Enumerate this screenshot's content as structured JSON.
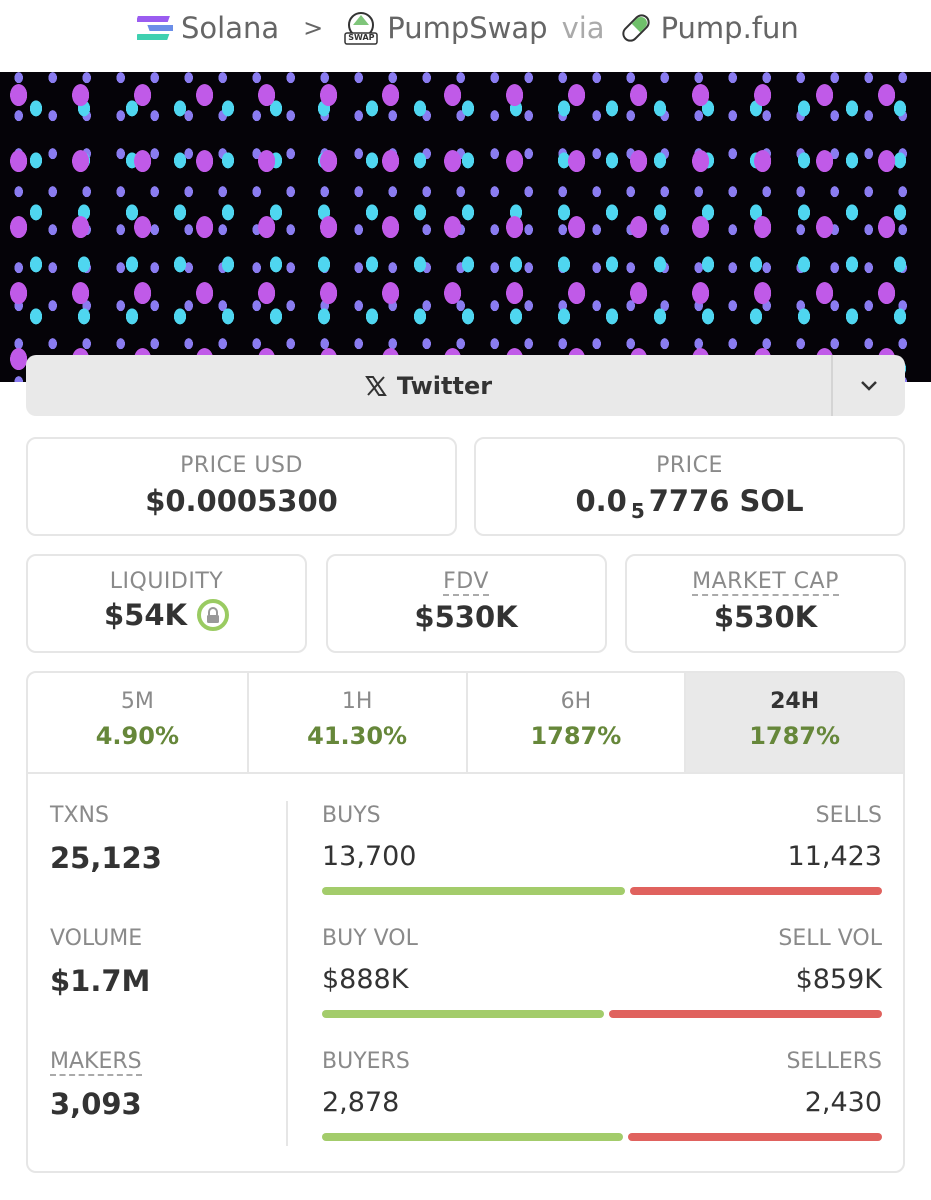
{
  "breadcrumb": {
    "chain": "Solana",
    "separator": ">",
    "dex": "PumpSwap",
    "dex_badge": "SWAP",
    "via": "via",
    "launchpad": "Pump.fun"
  },
  "social": {
    "label": "Twitter"
  },
  "price_usd": {
    "label": "PRICE USD",
    "value": "$0.0005300"
  },
  "price": {
    "label": "PRICE",
    "value_prefix": "0.0",
    "value_subscript": "5",
    "value_suffix": "7776 SOL"
  },
  "stats": [
    {
      "label": "LIQUIDITY",
      "value": "$54K"
    },
    {
      "label": "FDV",
      "value": "$530K"
    },
    {
      "label": "MARKET CAP",
      "value": "$530K"
    }
  ],
  "tabs": [
    {
      "label": "5M",
      "change": "4.90%",
      "selected": false
    },
    {
      "label": "1H",
      "change": "41.30%",
      "selected": false
    },
    {
      "label": "6H",
      "change": "1787%",
      "selected": false
    },
    {
      "label": "24H",
      "change": "1787%",
      "selected": true
    }
  ],
  "summary": [
    {
      "label": "TXNS",
      "value": "25,123"
    },
    {
      "label": "VOLUME",
      "value": "$1.7M"
    },
    {
      "label": "MAKERS",
      "value": "3,093"
    }
  ],
  "splits": [
    {
      "left_label": "BUYS",
      "left": {
        "value": 13700,
        "label": "13,700"
      },
      "right_label": "SELLS",
      "right": {
        "value": 11423,
        "label": "11,423"
      }
    },
    {
      "left_label": "BUY VOL",
      "left": {
        "value": 888000,
        "label": "$888K"
      },
      "right_label": "SELL VOL",
      "right": {
        "value": 859000,
        "label": "$859K"
      }
    },
    {
      "left_label": "BUYERS",
      "left": {
        "value": 2878,
        "label": "2,878"
      },
      "right_label": "SELLERS",
      "right": {
        "value": 2430,
        "label": "2,430"
      }
    }
  ]
}
